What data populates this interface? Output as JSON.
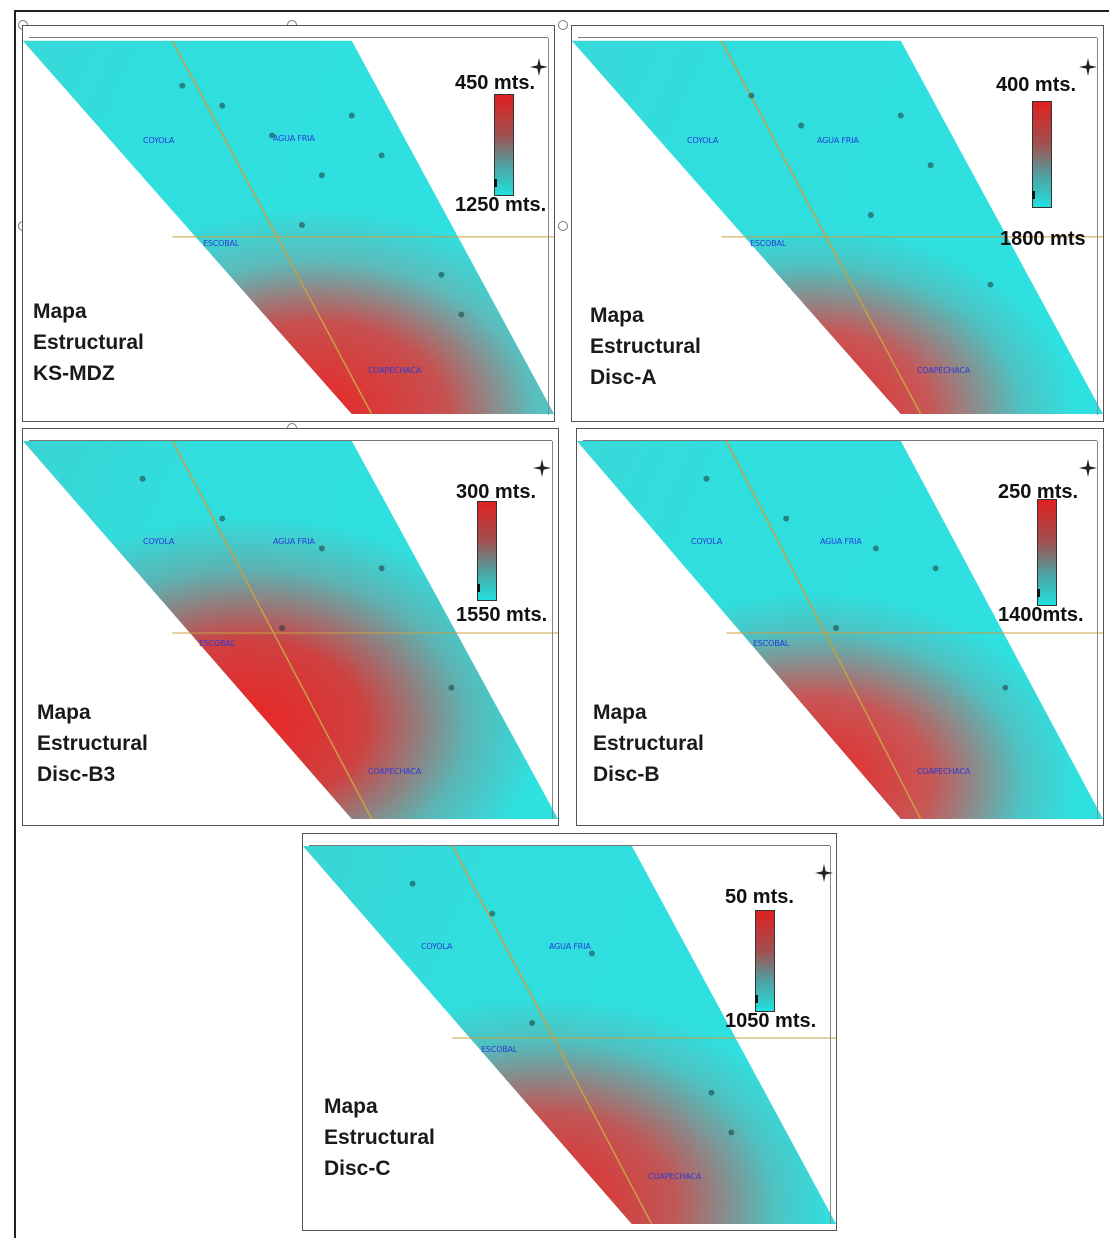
{
  "colors": {
    "shallow": "#e02020",
    "deep": "#22e0e0",
    "field_label": "#2a3cd8",
    "fault": "#c8a040"
  },
  "ruler_ticks": [
    "",
    "",
    "",
    "",
    "",
    "",
    ""
  ],
  "maps": [
    {
      "title_lines": [
        "Mapa",
        "Estructural",
        "KS-MDZ"
      ],
      "depth_top": "450 mts.",
      "depth_bottom": "1250 mts.",
      "fields": [
        "COYOLA",
        "AGUA FRIA",
        "ESCOBAL",
        "COAPECHACA"
      ]
    },
    {
      "title_lines": [
        "Mapa",
        "Estructural",
        "Disc-A"
      ],
      "depth_top": "400 mts.",
      "depth_bottom": "1800 mts",
      "fields": [
        "COYOLA",
        "AGUA FRIA",
        "ESCOBAL",
        "COAPECHACA"
      ]
    },
    {
      "title_lines": [
        "Mapa",
        "Estructural",
        "Disc-B3"
      ],
      "depth_top": "300 mts.",
      "depth_bottom": "1550 mts.",
      "fields": [
        "COYOLA",
        "AGUA FRIA",
        "ESCOBAL",
        "COAPECHACA"
      ]
    },
    {
      "title_lines": [
        "Mapa",
        "Estructural",
        "Disc-B"
      ],
      "depth_top": "250 mts.",
      "depth_bottom": "1400mts.",
      "fields": [
        "COYOLA",
        "AGUA FRIA",
        "ESCOBAL",
        "COAPECHACA"
      ]
    },
    {
      "title_lines": [
        "Mapa",
        "Estructural",
        "Disc-C"
      ],
      "depth_top": "50 mts.",
      "depth_bottom": "1050 mts.",
      "fields": [
        "COYOLA",
        "AGUA FRIA",
        "ESCOBAL",
        "COAPECHACA"
      ]
    }
  ]
}
